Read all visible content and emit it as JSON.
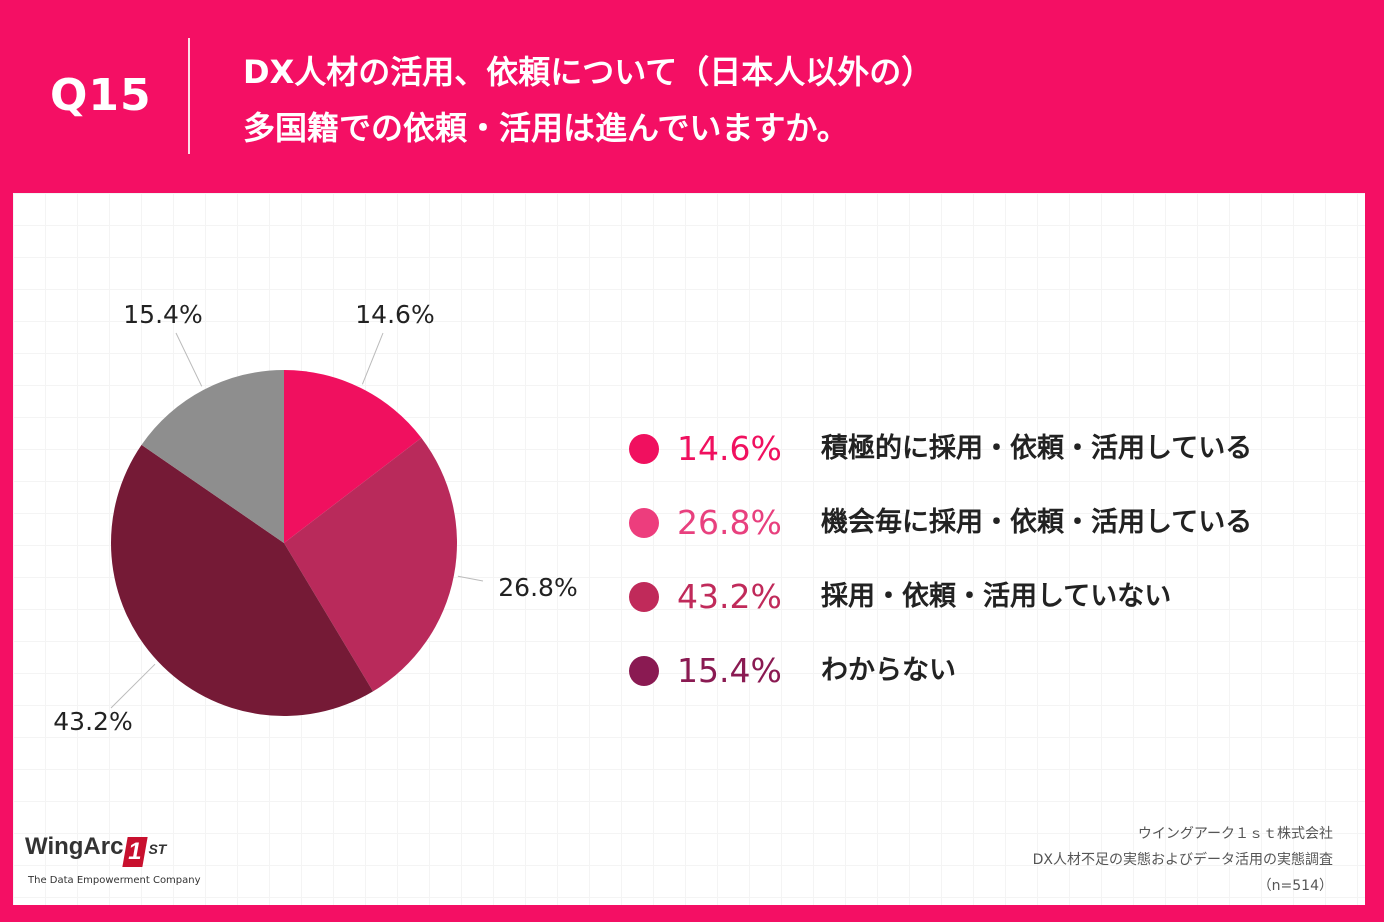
{
  "header": {
    "question_number": "Q15",
    "title_line1": "DX人材の活用、依頼について（日本人以外の）",
    "title_line2": "多国籍での依頼・活用は進んでいますか。"
  },
  "chart_data": {
    "type": "pie",
    "title": "DX人材の活用、依頼について（日本人以外の）多国籍での依頼・活用は進んでいますか。",
    "categories": [
      "積極的に採用・依頼・活用している",
      "機会毎に採用・依頼・活用している",
      "採用・依頼・活用していない",
      "わからない"
    ],
    "values": [
      14.6,
      26.8,
      43.2,
      15.4
    ],
    "slice_labels": [
      "14.6%",
      "26.8%",
      "43.2%",
      "15.4%"
    ],
    "slice_colors": [
      "#f0105f",
      "#b92a5b",
      "#751a36",
      "#8e8e8e"
    ],
    "legend": [
      {
        "pct": "14.6%",
        "label": "積極的に採用・依頼・活用している",
        "dot_color": "#f0105f",
        "pct_color": "#f0105f"
      },
      {
        "pct": "26.8%",
        "label": "機会毎に採用・依頼・活用している",
        "dot_color": "#ed3d7d",
        "pct_color": "#e8407e"
      },
      {
        "pct": "43.2%",
        "label": "採用・依頼・活用していない",
        "dot_color": "#c02a5a",
        "pct_color": "#c02a5a"
      },
      {
        "pct": "15.4%",
        "label": "わからない",
        "dot_color": "#8a1a52",
        "pct_color": "#8a1a52"
      }
    ],
    "legend_position": "right"
  },
  "footer": {
    "logo_text": "WingArc",
    "logo_mark": "1",
    "logo_suffix": "ST",
    "logo_tagline": "The Data Empowerment Company",
    "source_line1": "ウイングアーク１ｓｔ株式会社",
    "source_line2": "DX人材不足の実態およびデータ活用の実態調査",
    "source_line3": "（n=514）"
  },
  "colors": {
    "background": "#f40f64",
    "panel": "#ffffff"
  }
}
